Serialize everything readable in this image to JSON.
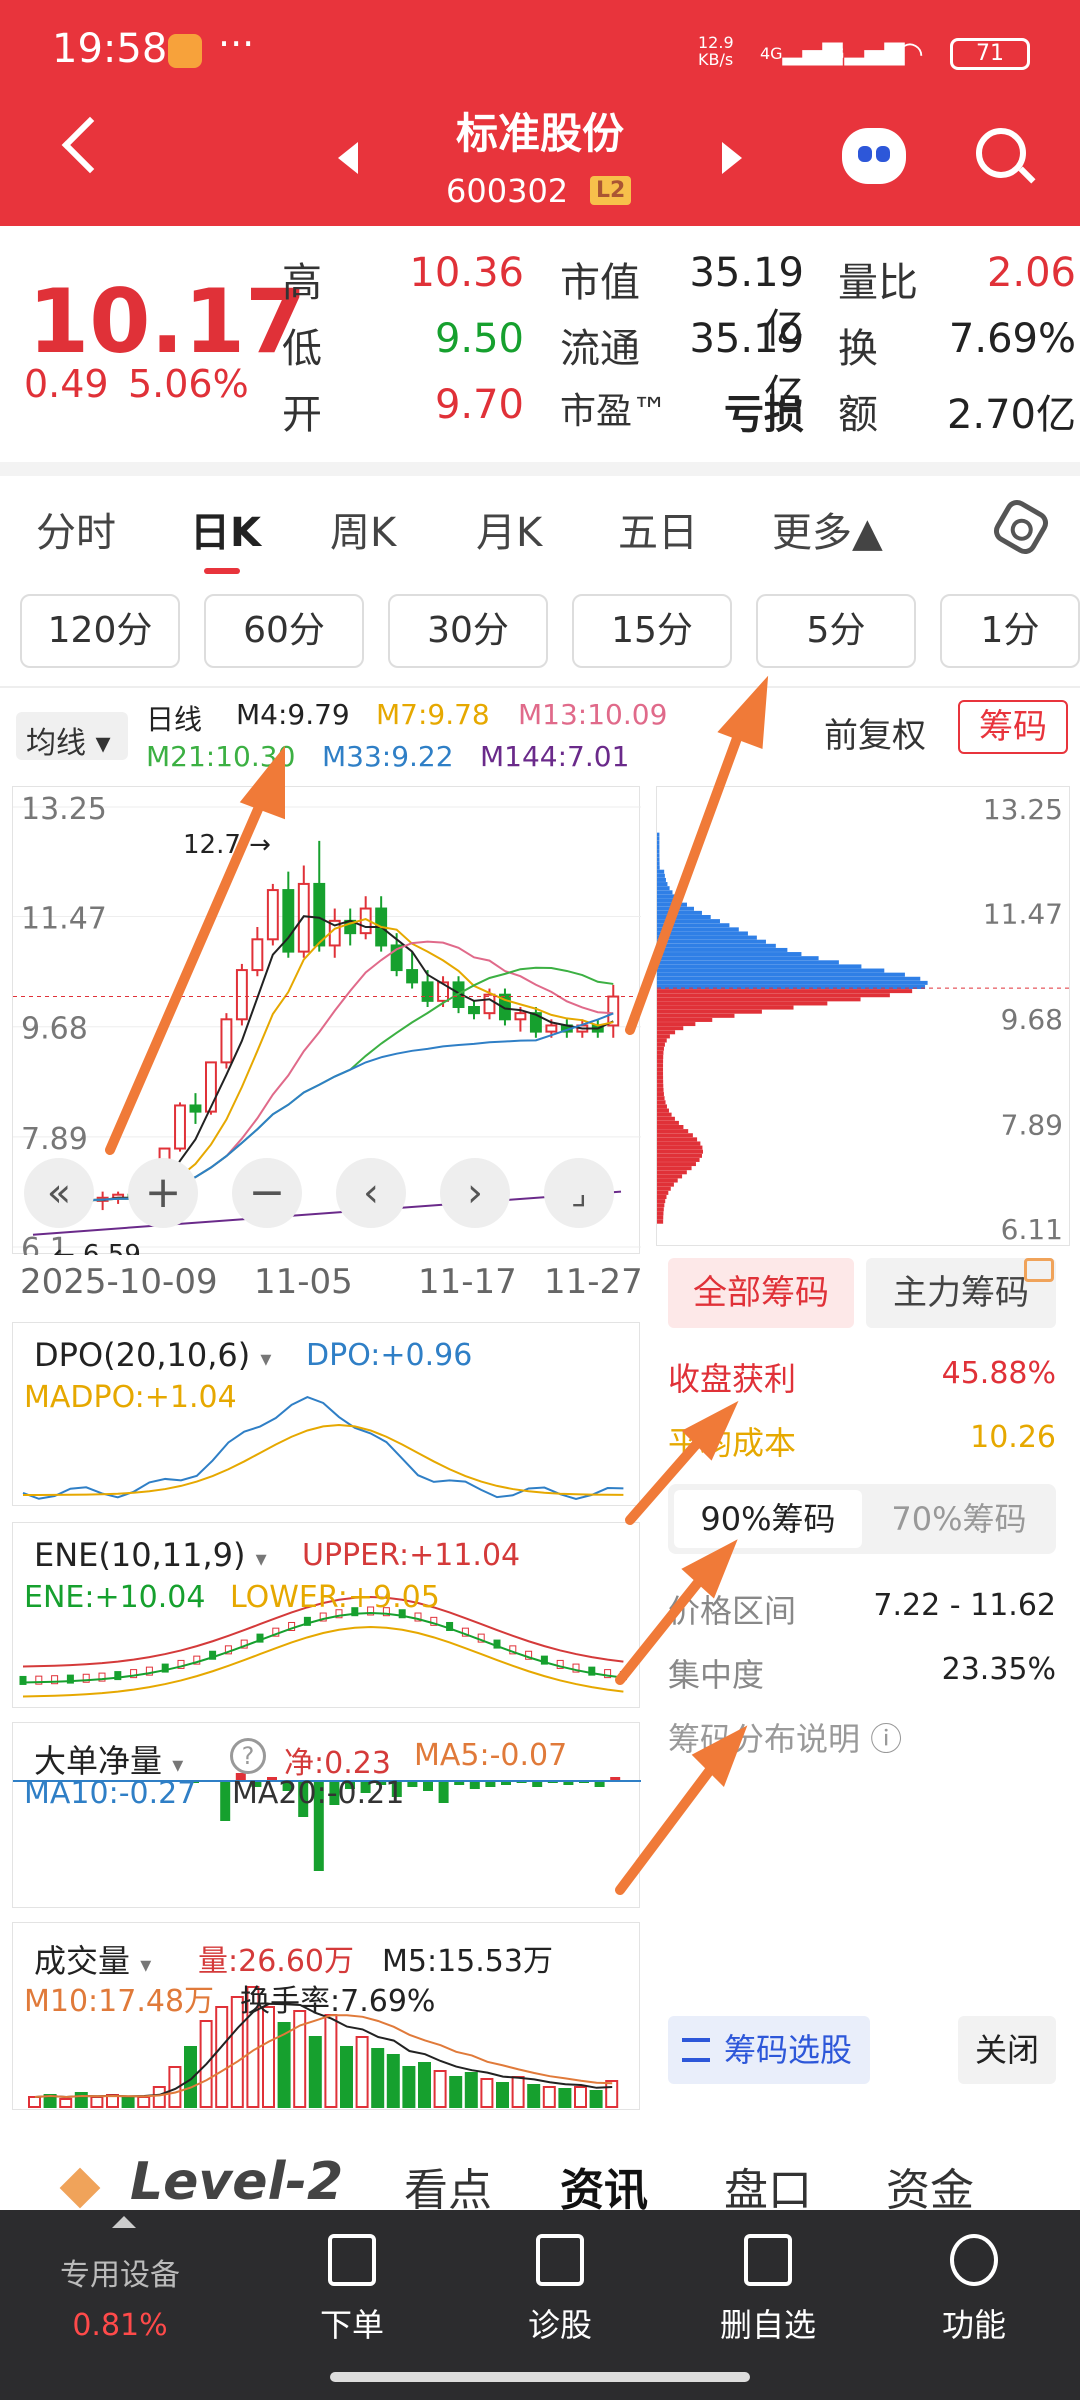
{
  "status_bar": {
    "time": "19:58",
    "dots": "···",
    "net_speed": "12.9\nKB/s",
    "sig1": "4G",
    "sig2": "4G",
    "battery": "71"
  },
  "header": {
    "title": "标准股份",
    "code": "600302",
    "badge": "L2"
  },
  "quote": {
    "price": "10.17",
    "change": "0.49",
    "change_pct": "5.06%",
    "high_label": "高",
    "high": "10.36",
    "low_label": "低",
    "low": "9.50",
    "open_label": "开",
    "open": "9.70",
    "mcap_label": "市值",
    "mcap": "35.19亿",
    "float_label": "流通",
    "float": "35.19亿",
    "pe_label": "市盈™",
    "pe": "亏损",
    "vr_label": "量比",
    "vr": "2.06",
    "turn_label": "换",
    "turn": "7.69%",
    "amt_label": "额",
    "amt": "2.70亿"
  },
  "tabs": [
    "分时",
    "日K",
    "周K",
    "月K",
    "五日",
    "更多▲"
  ],
  "intervals": [
    "120分",
    "60分",
    "30分",
    "15分",
    "5分",
    "1分"
  ],
  "legend": {
    "select": "均线",
    "period": "日线",
    "m4": "M4:9.79",
    "m7": "M7:9.78",
    "m13": "M13:10.09",
    "m21": "M21:10.30",
    "m33": "M33:9.22",
    "m144": "M144:7.01",
    "adjust": "前复权",
    "chip_button": "筹码"
  },
  "colors": {
    "up": "#e03138",
    "down": "#16a02e",
    "m4": "#222222",
    "m7": "#e6a800",
    "m13": "#e06a8a",
    "m21": "#3cb043",
    "m33": "#2f7fc6",
    "m144": "#6a2a8a"
  },
  "kline": {
    "y_labels": [
      "13.25",
      "11.47",
      "9.68",
      "7.89",
      "6.1"
    ],
    "high_mark": "12.7",
    "low_mark": "6.59",
    "dates": [
      "2025-10-09",
      "11-05",
      "11-17",
      "11-27"
    ],
    "candles": [
      {
        "o": 6.8,
        "c": 6.9,
        "h": 7.0,
        "l": 6.6
      },
      {
        "o": 6.9,
        "c": 6.8,
        "h": 7.0,
        "l": 6.7
      },
      {
        "o": 6.8,
        "c": 6.9,
        "h": 7.0,
        "l": 6.6
      },
      {
        "o": 6.9,
        "c": 6.85,
        "h": 7.0,
        "l": 6.75
      },
      {
        "o": 6.85,
        "c": 6.9,
        "h": 7.0,
        "l": 6.7
      },
      {
        "o": 6.9,
        "c": 6.95,
        "h": 7.0,
        "l": 6.8
      },
      {
        "o": 6.95,
        "c": 6.9,
        "h": 7.05,
        "l": 6.8
      },
      {
        "o": 6.9,
        "c": 7.0,
        "h": 7.1,
        "l": 6.85
      },
      {
        "o": 7.0,
        "c": 7.7,
        "h": 7.7,
        "l": 6.95
      },
      {
        "o": 7.7,
        "c": 8.4,
        "h": 8.45,
        "l": 7.65
      },
      {
        "o": 8.4,
        "c": 8.3,
        "h": 8.6,
        "l": 8.1
      },
      {
        "o": 8.3,
        "c": 9.1,
        "h": 9.1,
        "l": 8.25
      },
      {
        "o": 9.1,
        "c": 9.8,
        "h": 9.9,
        "l": 9.0
      },
      {
        "o": 9.8,
        "c": 10.6,
        "h": 10.7,
        "l": 9.7
      },
      {
        "o": 10.6,
        "c": 11.1,
        "h": 11.3,
        "l": 10.5
      },
      {
        "o": 11.1,
        "c": 11.9,
        "h": 12.0,
        "l": 11.0
      },
      {
        "o": 11.9,
        "c": 10.9,
        "h": 12.2,
        "l": 10.8
      },
      {
        "o": 10.9,
        "c": 12.0,
        "h": 12.3,
        "l": 10.8
      },
      {
        "o": 12.0,
        "c": 11.0,
        "h": 12.7,
        "l": 10.9
      },
      {
        "o": 11.0,
        "c": 11.4,
        "h": 11.6,
        "l": 10.8
      },
      {
        "o": 11.4,
        "c": 11.2,
        "h": 11.6,
        "l": 11.0
      },
      {
        "o": 11.2,
        "c": 11.6,
        "h": 11.8,
        "l": 11.1
      },
      {
        "o": 11.6,
        "c": 11.0,
        "h": 11.8,
        "l": 10.9
      },
      {
        "o": 11.0,
        "c": 10.6,
        "h": 11.2,
        "l": 10.5
      },
      {
        "o": 10.6,
        "c": 10.4,
        "h": 10.9,
        "l": 10.3
      },
      {
        "o": 10.4,
        "c": 10.1,
        "h": 10.6,
        "l": 10.0
      },
      {
        "o": 10.1,
        "c": 10.4,
        "h": 10.5,
        "l": 10.0
      },
      {
        "o": 10.4,
        "c": 10.0,
        "h": 10.5,
        "l": 9.9
      },
      {
        "o": 10.0,
        "c": 9.9,
        "h": 10.1,
        "l": 9.8
      },
      {
        "o": 9.9,
        "c": 10.2,
        "h": 10.3,
        "l": 9.8
      },
      {
        "o": 10.2,
        "c": 9.8,
        "h": 10.3,
        "l": 9.7
      },
      {
        "o": 9.8,
        "c": 9.9,
        "h": 10.0,
        "l": 9.6
      },
      {
        "o": 9.9,
        "c": 9.6,
        "h": 10.0,
        "l": 9.5
      },
      {
        "o": 9.6,
        "c": 9.7,
        "h": 9.8,
        "l": 9.5
      },
      {
        "o": 9.7,
        "c": 9.6,
        "h": 9.8,
        "l": 9.5
      },
      {
        "o": 9.6,
        "c": 9.7,
        "h": 9.8,
        "l": 9.5
      },
      {
        "o": 9.7,
        "c": 9.6,
        "h": 9.8,
        "l": 9.5
      },
      {
        "o": 9.7,
        "c": 10.17,
        "h": 10.36,
        "l": 9.5
      }
    ]
  },
  "chips": {
    "y_labels": [
      "13.25",
      "11.47",
      "9.68",
      "7.89",
      "6.11"
    ],
    "tab_all": "全部筹码",
    "tab_main": "主力筹码",
    "profit_label": "收盘获利",
    "profit": "45.88%",
    "avgcost_label": "平均成本",
    "avgcost": "10.26",
    "pct90": "90%筹码",
    "pct70": "70%筹码",
    "range_label": "价格区间",
    "range": "7.22 - 11.62",
    "conc_label": "集中度",
    "conc": "23.35%",
    "explain": "筹码分布说明 ⓘ",
    "select_btn": "筹码选股",
    "close_btn": "关闭"
  },
  "dpo": {
    "select": "DPO(20,10,6)",
    "dpo": "DPO:+0.96",
    "madpo": "MADPO:+1.04"
  },
  "ene": {
    "select": "ENE(10,11,9)",
    "upper": "UPPER:+11.04",
    "ene": "ENE:+10.04",
    "lower": "LOWER:+9.05"
  },
  "bigorder": {
    "select": "大单净量",
    "net": "净:0.23",
    "ma5": "MA5:-0.07",
    "ma10": "MA10:-0.27",
    "ma20": "MA20:-0.21"
  },
  "volume": {
    "select": "成交量",
    "vol": "量:26.60万",
    "m5": "M5:15.53万",
    "m10": "M10:17.48万",
    "turnover": "换手率:7.69%"
  },
  "bottom_tabs": {
    "level2": "Level-2",
    "t1": "看点",
    "t2": "资讯",
    "t3": "盘口",
    "t4": "资金"
  },
  "bottom_bar": {
    "device": "专用设备",
    "device_pct": "0.81%",
    "order": "下单",
    "diag": "诊股",
    "del": "删自选",
    "func": "功能"
  }
}
